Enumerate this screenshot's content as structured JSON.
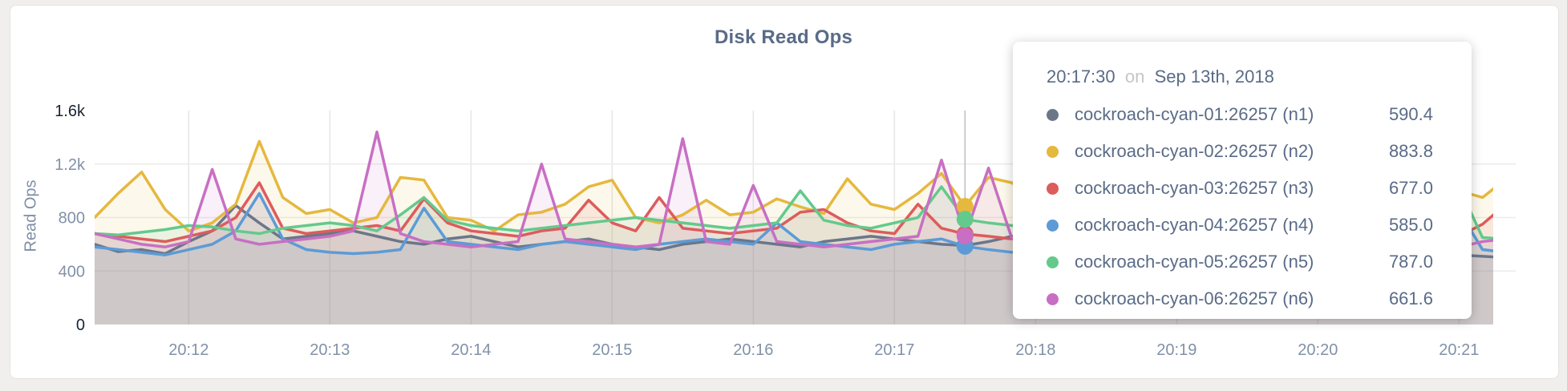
{
  "title": "Disk Read Ops",
  "y_axis_label": "Read Ops",
  "tooltip": {
    "time": "20:17:30",
    "conjunction": "on",
    "date": "Sep 13th, 2018",
    "rows": [
      {
        "label": "cockroach-cyan-01:26257 (n1)",
        "value": "590.4"
      },
      {
        "label": "cockroach-cyan-02:26257 (n2)",
        "value": "883.8"
      },
      {
        "label": "cockroach-cyan-03:26257 (n3)",
        "value": "677.0"
      },
      {
        "label": "cockroach-cyan-04:26257 (n4)",
        "value": "585.0"
      },
      {
        "label": "cockroach-cyan-05:26257 (n5)",
        "value": "787.0"
      },
      {
        "label": "cockroach-cyan-06:26257 (n6)",
        "value": "661.6"
      }
    ]
  },
  "chart_data": {
    "type": "line",
    "title": "Disk Read Ops",
    "ylabel": "Read Ops",
    "xlabel": "",
    "grid": true,
    "legend_position": "tooltip-overlay",
    "ylim": [
      0,
      1600
    ],
    "y_ticks": [
      {
        "value": 0,
        "label": "0",
        "emphasis": true
      },
      {
        "value": 400,
        "label": "400",
        "emphasis": false
      },
      {
        "value": 800,
        "label": "800",
        "emphasis": false
      },
      {
        "value": 1200,
        "label": "1.2k",
        "emphasis": false
      },
      {
        "value": 1600,
        "label": "1.6k",
        "emphasis": true
      }
    ],
    "x_tick_labels": [
      "20:12",
      "20:13",
      "20:14",
      "20:15",
      "20:16",
      "20:17",
      "20:18",
      "20:19",
      "20:20",
      "20:21"
    ],
    "x_start": "20:11:20",
    "x_interval_seconds": 10,
    "hover_time": "20:17:30",
    "hover_index": 37,
    "guideline_color": "#bdbdbd",
    "series": [
      {
        "name": "cockroach-cyan-01:26257 (n1)",
        "short": "n1",
        "color": "#6b7689",
        "values": [
          600,
          545,
          560,
          530,
          620,
          700,
          890,
          760,
          640,
          660,
          680,
          700,
          660,
          620,
          600,
          640,
          660,
          620,
          580,
          600,
          620,
          640,
          600,
          580,
          560,
          600,
          620,
          640,
          620,
          600,
          580,
          620,
          640,
          660,
          640,
          620,
          600,
          590.4,
          620,
          660,
          680,
          640,
          620,
          600,
          580,
          600,
          620,
          640,
          620,
          600,
          580,
          560,
          580,
          600,
          620,
          640,
          620,
          600,
          520,
          510,
          500
        ]
      },
      {
        "name": "cockroach-cyan-02:26257 (n2)",
        "short": "n2",
        "color": "#e5b83e",
        "values": [
          800,
          980,
          1140,
          860,
          700,
          760,
          900,
          1370,
          950,
          830,
          860,
          760,
          800,
          1100,
          1080,
          800,
          780,
          700,
          820,
          840,
          900,
          1030,
          1080,
          800,
          760,
          820,
          930,
          820,
          840,
          940,
          880,
          830,
          1090,
          900,
          860,
          980,
          1130,
          883.8,
          1100,
          1060,
          900,
          850,
          830,
          870,
          910,
          860,
          840,
          880,
          900,
          870,
          850,
          830,
          870,
          1060,
          850,
          830,
          790,
          900,
          1000,
          950,
          1090
        ]
      },
      {
        "name": "cockroach-cyan-03:26257 (n3)",
        "short": "n3",
        "color": "#dd5c5c",
        "values": [
          680,
          660,
          640,
          620,
          660,
          700,
          800,
          1060,
          720,
          680,
          700,
          720,
          740,
          700,
          940,
          760,
          700,
          680,
          660,
          700,
          720,
          930,
          760,
          700,
          950,
          720,
          700,
          680,
          700,
          720,
          840,
          860,
          760,
          700,
          680,
          900,
          720,
          677,
          660,
          640,
          700,
          720,
          740,
          700,
          680,
          660,
          700,
          720,
          700,
          680,
          660,
          640,
          660,
          680,
          700,
          720,
          700,
          680,
          660,
          750,
          900
        ]
      },
      {
        "name": "cockroach-cyan-04:26257 (n4)",
        "short": "n4",
        "color": "#5c9bd6",
        "values": [
          580,
          560,
          540,
          520,
          560,
          600,
          700,
          980,
          640,
          560,
          540,
          530,
          540,
          560,
          870,
          620,
          600,
          580,
          560,
          600,
          620,
          600,
          580,
          560,
          600,
          620,
          640,
          620,
          600,
          760,
          620,
          600,
          580,
          560,
          600,
          620,
          640,
          585,
          560,
          540,
          560,
          580,
          600,
          620,
          600,
          580,
          560,
          540,
          560,
          580,
          600,
          620,
          600,
          580,
          560,
          540,
          560,
          580,
          850,
          560,
          540
        ]
      },
      {
        "name": "cockroach-cyan-05:26257 (n5)",
        "short": "n5",
        "color": "#64c98c",
        "values": [
          680,
          670,
          690,
          710,
          740,
          730,
          700,
          680,
          720,
          740,
          760,
          740,
          700,
          820,
          950,
          780,
          740,
          720,
          700,
          720,
          740,
          760,
          780,
          800,
          780,
          760,
          740,
          720,
          740,
          760,
          1000,
          780,
          740,
          720,
          760,
          800,
          1030,
          787,
          760,
          740,
          760,
          780,
          800,
          780,
          760,
          740,
          760,
          780,
          800,
          780,
          760,
          740,
          720,
          740,
          760,
          780,
          800,
          780,
          1030,
          650,
          640
        ]
      },
      {
        "name": "cockroach-cyan-06:26257 (n6)",
        "short": "n6",
        "color": "#c86fc3",
        "values": [
          680,
          640,
          600,
          580,
          620,
          1160,
          640,
          600,
          620,
          640,
          660,
          700,
          1440,
          680,
          620,
          600,
          580,
          600,
          620,
          1200,
          640,
          620,
          600,
          580,
          600,
          1390,
          620,
          600,
          1040,
          620,
          600,
          580,
          600,
          620,
          640,
          660,
          1230,
          661.6,
          1170,
          640,
          620,
          600,
          580,
          600,
          620,
          640,
          660,
          640,
          620,
          600,
          580,
          600,
          620,
          640,
          660,
          640,
          620,
          600,
          580,
          620,
          640
        ]
      }
    ]
  }
}
